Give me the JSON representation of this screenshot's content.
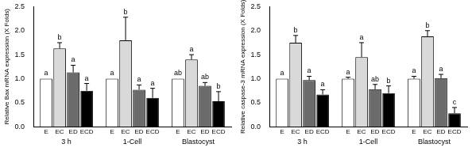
{
  "chart_data": [
    {
      "type": "bar",
      "y_label": "Relative Bax mRNA expression (X Folds)",
      "categories": [
        "3 h",
        "1-Cell",
        "Blastocyst"
      ],
      "series": [
        {
          "name": "E",
          "color": "#ffffff",
          "values": [
            1.0,
            1.0,
            1.0
          ],
          "errors": [
            0,
            0,
            0
          ],
          "annotations": [
            "a",
            "a",
            "ab"
          ]
        },
        {
          "name": "EC",
          "color": "#d9d9d9",
          "values": [
            1.63,
            1.8,
            1.4
          ],
          "errors": [
            0.12,
            0.48,
            0.1
          ],
          "annotations": [
            "b",
            "b",
            "a"
          ]
        },
        {
          "name": "ED",
          "color": "#6b6b6b",
          "values": [
            1.13,
            0.77,
            0.85
          ],
          "errors": [
            0.15,
            0.1,
            0.07
          ],
          "annotations": [
            "a",
            "a",
            "ab"
          ]
        },
        {
          "name": "ECD",
          "color": "#000000",
          "values": [
            0.75,
            0.6,
            0.53
          ],
          "errors": [
            0.15,
            0.2,
            0.2
          ],
          "annotations": [
            "a",
            "a",
            "b"
          ]
        }
      ],
      "ylim": [
        0,
        2.5
      ],
      "yticks": [
        {
          "value": 0,
          "label": "0.0"
        },
        {
          "value": 0.5,
          "label": "0.5"
        },
        {
          "value": 1,
          "label": "1.0"
        },
        {
          "value": 1.5,
          "label": "1.5"
        },
        {
          "value": 2,
          "label": "2.0"
        },
        {
          "value": 2.5,
          "label": "2.5"
        }
      ],
      "grid": false
    },
    {
      "type": "bar",
      "y_label": "Relative caspase-3 mRNA expression (X Folds)",
      "categories": [
        "3 h",
        "1-Cell",
        "Blastocyst"
      ],
      "series": [
        {
          "name": "E",
          "color": "#ffffff",
          "values": [
            1.0,
            1.0,
            1.0
          ],
          "errors": [
            0,
            0.03,
            0.05
          ],
          "annotations": [
            "a",
            "a",
            "a"
          ]
        },
        {
          "name": "EC",
          "color": "#d9d9d9",
          "values": [
            1.75,
            1.45,
            1.88
          ],
          "errors": [
            0.15,
            0.3,
            0.12
          ],
          "annotations": [
            "b",
            "a",
            "b"
          ]
        },
        {
          "name": "ED",
          "color": "#6b6b6b",
          "values": [
            0.97,
            0.78,
            1.01
          ],
          "errors": [
            0.08,
            0.1,
            0.08
          ],
          "annotations": [
            "a",
            "ab",
            "a"
          ]
        },
        {
          "name": "ECD",
          "color": "#000000",
          "values": [
            0.67,
            0.7,
            0.28
          ],
          "errors": [
            0.1,
            0.15,
            0.12
          ],
          "annotations": [
            "a",
            "b",
            "c"
          ]
        }
      ],
      "ylim": [
        0,
        2.5
      ],
      "yticks": [
        {
          "value": 0,
          "label": "0.0"
        },
        {
          "value": 0.5,
          "label": "0.5"
        },
        {
          "value": 1,
          "label": "1.0"
        },
        {
          "value": 1.5,
          "label": "1.5"
        },
        {
          "value": 2,
          "label": "2.0"
        },
        {
          "value": 2.5,
          "label": "2.5"
        }
      ],
      "grid": false
    }
  ]
}
